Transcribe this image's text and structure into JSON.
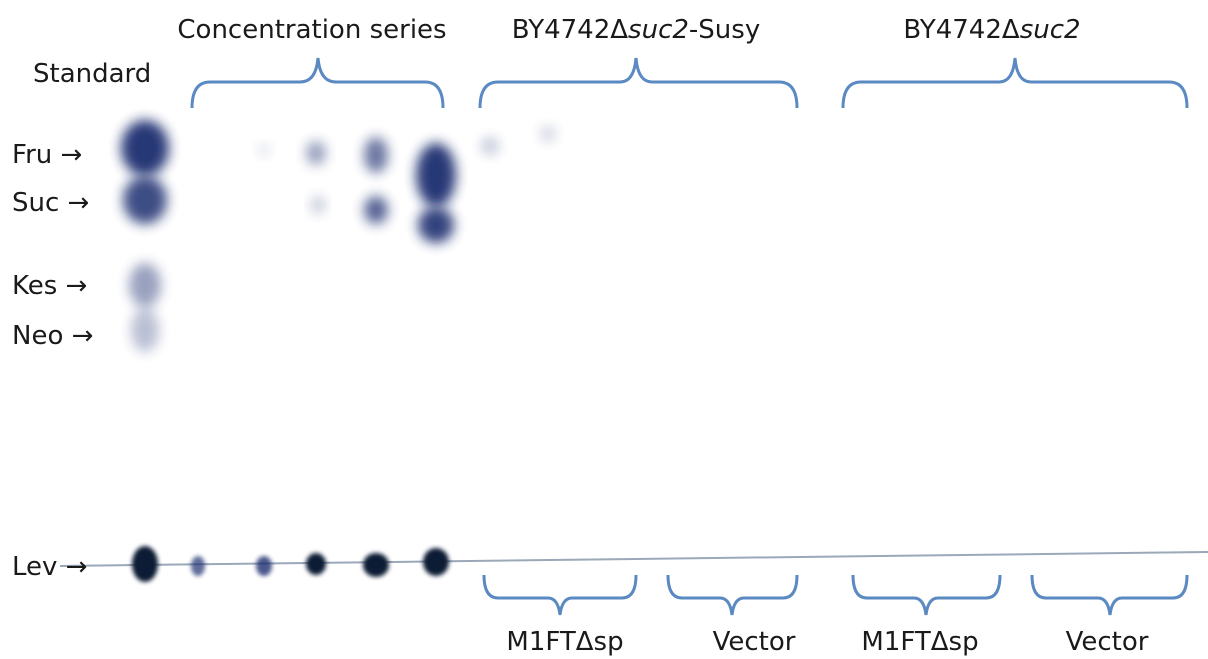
{
  "header": {
    "groups": [
      {
        "text": "Concentration series"
      },
      {
        "prefix": "BY4742Δ",
        "italic": "suc2",
        "suffix": "-Susy"
      },
      {
        "prefix": "BY4742Δ",
        "italic": "suc2"
      }
    ],
    "standard": "Standard"
  },
  "markers": [
    "Fru →",
    "Suc →",
    "Kes →",
    "Neo →",
    "Lev →"
  ],
  "footer": {
    "labels": [
      "M1FTΔsp",
      "Vector",
      "M1FTΔsp",
      "Vector"
    ]
  }
}
